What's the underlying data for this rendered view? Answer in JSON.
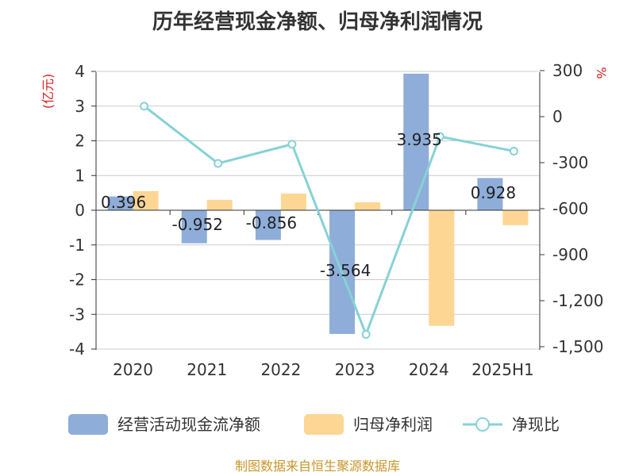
{
  "chart_data": {
    "type": "bar",
    "title": "历年经营现金净额、归母净利润情况",
    "categories": [
      "2020",
      "2021",
      "2022",
      "2023",
      "2024",
      "2025H1"
    ],
    "series": [
      {
        "name": "经营活动现金流净额",
        "type": "bar",
        "axis": "left",
        "color": "#8eadd9",
        "values": [
          0.396,
          -0.952,
          -0.856,
          -3.564,
          3.935,
          0.928
        ]
      },
      {
        "name": "归母净利润",
        "type": "bar",
        "axis": "left",
        "color": "#fdd694",
        "values": [
          0.55,
          0.3,
          0.48,
          0.23,
          -3.33,
          -0.43
        ]
      },
      {
        "name": "净现比",
        "type": "line",
        "axis": "right",
        "color": "#86d2d6",
        "values": [
          68,
          -305,
          -180,
          -1420,
          -130,
          -225
        ]
      }
    ],
    "data_labels": [
      "0.396",
      "-0.952",
      "-0.856",
      "-3.564",
      "3.935",
      "0.928"
    ],
    "y_left": {
      "label": "(亿元)",
      "min": -4,
      "max": 4,
      "ticks": [
        "4",
        "3",
        "2",
        "1",
        "0",
        "-1",
        "-2",
        "-3",
        "-4"
      ]
    },
    "y_right": {
      "label": "%",
      "min": -1500,
      "max": 300,
      "ticks": [
        "300",
        "0",
        "-300",
        "-600",
        "-900",
        "-1,200",
        "-1,500"
      ]
    },
    "grid": true,
    "legend_position": "bottom"
  },
  "source": "制图数据来自恒生聚源数据库"
}
